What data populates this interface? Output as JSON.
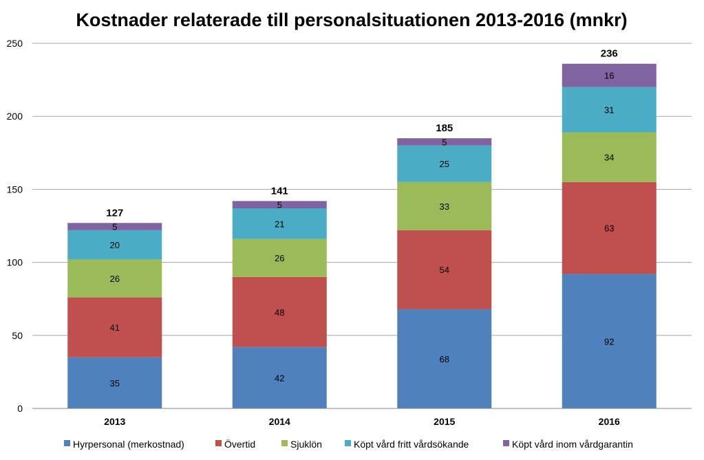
{
  "chart_data": {
    "type": "bar",
    "stacked": true,
    "title": "Kostnader relaterade till personalsituationen 2013-2016 (mnkr)",
    "categories": [
      "2013",
      "2014",
      "2015",
      "2016"
    ],
    "series": [
      {
        "name": "Hyrpersonal (merkostnad)",
        "color": "#4F81BD",
        "values": [
          35,
          42,
          68,
          92
        ]
      },
      {
        "name": "Övertid",
        "color": "#C0504D",
        "values": [
          41,
          48,
          54,
          63
        ]
      },
      {
        "name": "Sjuklön",
        "color": "#9BBB59",
        "values": [
          26,
          26,
          33,
          34
        ]
      },
      {
        "name": "Köpt vård fritt vårdsökande",
        "color": "#4BACC6",
        "values": [
          20,
          21,
          25,
          31
        ]
      },
      {
        "name": "Köpt vård inom vårdgarantin",
        "color": "#8064A2",
        "values": [
          5,
          5,
          5,
          16
        ]
      }
    ],
    "totals": [
      "127",
      "141",
      "185",
      "236"
    ],
    "ylim": [
      0,
      250
    ],
    "yticks": [
      "0",
      "50",
      "100",
      "150",
      "200",
      "250"
    ],
    "grid": true,
    "legend": "bottom",
    "xlabel": "",
    "ylabel": ""
  }
}
